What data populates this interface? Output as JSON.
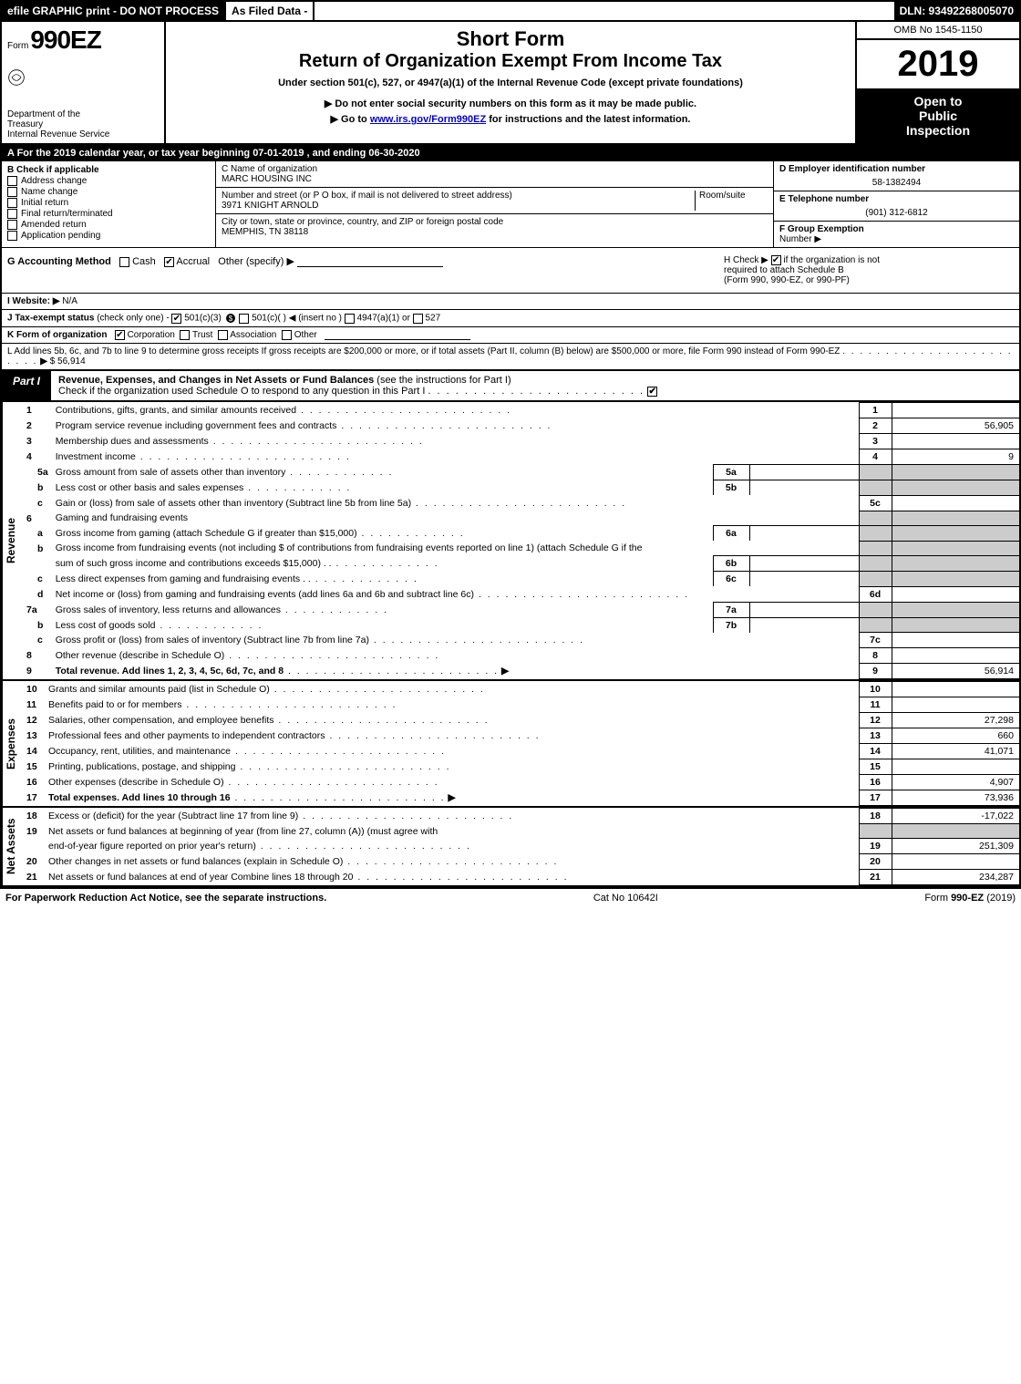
{
  "colors": {
    "black": "#000000",
    "white": "#ffffff",
    "shaded": "#cccccc",
    "link": "#0000cc"
  },
  "topbar": {
    "efile": "efile GRAPHIC print - DO NOT PROCESS",
    "asfiled": "As Filed Data -",
    "dln": "DLN: 93492268005070"
  },
  "header": {
    "form_prefix": "Form",
    "form_number": "990EZ",
    "dept1": "Department of the",
    "dept2": "Treasury",
    "dept3": "Internal Revenue Service",
    "short_form": "Short Form",
    "title": "Return of Organization Exempt From Income Tax",
    "subtitle": "Under section 501(c), 527, or 4947(a)(1) of the Internal Revenue Code (except private foundations)",
    "arrow1": "▶ Do not enter social security numbers on this form as it may be made public.",
    "arrow2_pre": "▶ Go to ",
    "arrow2_link": "www.irs.gov/Form990EZ",
    "arrow2_post": " for instructions and the latest information.",
    "omb": "OMB No 1545-1150",
    "year": "2019",
    "inspection1": "Open to",
    "inspection2": "Public",
    "inspection3": "Inspection"
  },
  "line_a": "A  For the 2019 calendar year, or tax year beginning 07-01-2019 , and ending 06-30-2020",
  "box_b": {
    "title": "B  Check if applicable",
    "items": [
      {
        "label": "Address change",
        "checked": false
      },
      {
        "label": "Name change",
        "checked": false
      },
      {
        "label": "Initial return",
        "checked": false
      },
      {
        "label": "Final return/terminated",
        "checked": false
      },
      {
        "label": "Amended return",
        "checked": false
      },
      {
        "label": "Application pending",
        "checked": false
      }
    ]
  },
  "box_c": {
    "label": "C Name of organization",
    "value": "MARC HOUSING INC",
    "street_label": "Number and street (or P O box, if mail is not delivered to street address)",
    "room_label": "Room/suite",
    "street": "3971 KNIGHT ARNOLD",
    "city_label": "City or town, state or province, country, and ZIP or foreign postal code",
    "city": "MEMPHIS, TN  38118"
  },
  "box_d": {
    "label": "D Employer identification number",
    "value": "58-1382494"
  },
  "box_e": {
    "label": "E Telephone number",
    "value": "(901) 312-6812"
  },
  "box_f": {
    "label": "F Group Exemption",
    "label2": "Number   ▶",
    "value": ""
  },
  "box_g": {
    "label": "G Accounting Method",
    "cash": "Cash",
    "accrual": "Accrual",
    "other": "Other (specify) ▶"
  },
  "box_h": {
    "text1": "H   Check ▶",
    "text2": "if the organization is not",
    "text3": "required to attach Schedule B",
    "text4": "(Form 990, 990-EZ, or 990-PF)",
    "checked": true
  },
  "box_i": {
    "label": "I Website: ▶",
    "value": "N/A"
  },
  "box_j": {
    "label": "J Tax-exempt status",
    "note": "(check only one) -",
    "opt1": "501(c)(3)",
    "opt2": "501(c)(  )",
    "opt2_note": "◀ (insert no )",
    "opt3": "4947(a)(1) or",
    "opt4": "527"
  },
  "box_k": {
    "label": "K Form of organization",
    "opts": [
      "Corporation",
      "Trust",
      "Association",
      "Other"
    ],
    "checked_index": 0
  },
  "box_l": {
    "text": "L Add lines 5b, 6c, and 7b to line 9 to determine gross receipts  If gross receipts are $200,000 or more, or if total assets (Part II, column (B) below) are $500,000 or more, file Form 990 instead of Form 990-EZ",
    "arrow": "▶",
    "value": "$ 56,914"
  },
  "part1": {
    "badge": "Part I",
    "title": "Revenue, Expenses, and Changes in Net Assets or Fund Balances",
    "title_note": " (see the instructions for Part I)",
    "check_line": "Check if the organization used Schedule O to respond to any question in this Part I",
    "checked": true
  },
  "revenue_lines": [
    {
      "n": "1",
      "d": "Contributions, gifts, grants, and similar amounts received",
      "r": "1",
      "v": ""
    },
    {
      "n": "2",
      "d": "Program service revenue including government fees and contracts",
      "r": "2",
      "v": "56,905"
    },
    {
      "n": "3",
      "d": "Membership dues and assessments",
      "r": "3",
      "v": ""
    },
    {
      "n": "4",
      "d": "Investment income",
      "r": "4",
      "v": "9"
    },
    {
      "n": "5a",
      "sub": true,
      "d": "Gross amount from sale of assets other than inventory",
      "mb": "5a",
      "mv": ""
    },
    {
      "n": "b",
      "sub": true,
      "d": "Less  cost or other basis and sales expenses",
      "mb": "5b",
      "mv": ""
    },
    {
      "n": "c",
      "sub": true,
      "d": "Gain or (loss) from sale of assets other than inventory (Subtract line 5b from line 5a)",
      "r": "5c",
      "v": ""
    },
    {
      "n": "6",
      "d": "Gaming and fundraising events"
    },
    {
      "n": "a",
      "sub": true,
      "d": "Gross income from gaming (attach Schedule G if greater than $15,000)",
      "mb": "6a",
      "mv": ""
    },
    {
      "n": "b",
      "sub": true,
      "d": "Gross income from fundraising events (not including $                           of contributions from fundraising events reported on line 1) (attach Schedule G if the"
    },
    {
      "n": "",
      "sub": true,
      "d": "sum of such gross income and contributions exceeds $15,000)     .   .",
      "mb": "6b",
      "mv": ""
    },
    {
      "n": "c",
      "sub": true,
      "d": "Less  direct expenses from gaming and fundraising events        .   .",
      "mb": "6c",
      "mv": ""
    },
    {
      "n": "d",
      "sub": true,
      "d": "Net income or (loss) from gaming and fundraising events (add lines 6a and 6b and subtract line 6c)",
      "r": "6d",
      "v": ""
    },
    {
      "n": "7a",
      "d": "Gross sales of inventory, less returns and allowances",
      "mb": "7a",
      "mv": ""
    },
    {
      "n": "b",
      "sub": true,
      "d": "Less  cost of goods sold",
      "mb": "7b",
      "mv": ""
    },
    {
      "n": "c",
      "sub": true,
      "d": "Gross profit or (loss) from sales of inventory (Subtract line 7b from line 7a)",
      "r": "7c",
      "v": ""
    },
    {
      "n": "8",
      "d": "Other revenue (describe in Schedule O)",
      "r": "8",
      "v": ""
    },
    {
      "n": "9",
      "d": "Total revenue. Add lines 1, 2, 3, 4, 5c, 6d, 7c, and 8",
      "bold": true,
      "arrow": true,
      "r": "9",
      "v": "56,914"
    }
  ],
  "expense_lines": [
    {
      "n": "10",
      "d": "Grants and similar amounts paid (list in Schedule O)",
      "r": "10",
      "v": ""
    },
    {
      "n": "11",
      "d": "Benefits paid to or for members",
      "r": "11",
      "v": ""
    },
    {
      "n": "12",
      "d": "Salaries, other compensation, and employee benefits",
      "r": "12",
      "v": "27,298"
    },
    {
      "n": "13",
      "d": "Professional fees and other payments to independent contractors",
      "r": "13",
      "v": "660"
    },
    {
      "n": "14",
      "d": "Occupancy, rent, utilities, and maintenance",
      "r": "14",
      "v": "41,071"
    },
    {
      "n": "15",
      "d": "Printing, publications, postage, and shipping",
      "r": "15",
      "v": ""
    },
    {
      "n": "16",
      "d": "Other expenses (describe in Schedule O)",
      "r": "16",
      "v": "4,907"
    },
    {
      "n": "17",
      "d": "Total expenses. Add lines 10 through 16",
      "bold": true,
      "arrow": true,
      "r": "17",
      "v": "73,936"
    }
  ],
  "netasset_lines": [
    {
      "n": "18",
      "d": "Excess or (deficit) for the year (Subtract line 17 from line 9)",
      "r": "18",
      "v": "-17,022"
    },
    {
      "n": "19",
      "d": "Net assets or fund balances at beginning of year (from line 27, column (A)) (must agree with"
    },
    {
      "n": "",
      "d": "end-of-year figure reported on prior year's return)",
      "r": "19",
      "v": "251,309"
    },
    {
      "n": "20",
      "d": "Other changes in net assets or fund balances (explain in Schedule O)",
      "r": "20",
      "v": ""
    },
    {
      "n": "21",
      "d": "Net assets or fund balances at end of year  Combine lines 18 through 20",
      "r": "21",
      "v": "234,287"
    }
  ],
  "section_labels": {
    "revenue": "Revenue",
    "expenses": "Expenses",
    "netassets": "Net Assets"
  },
  "footer": {
    "left": "For Paperwork Reduction Act Notice, see the separate instructions.",
    "mid": "Cat No 10642I",
    "right_pre": "Form ",
    "right_form": "990-EZ",
    "right_post": " (2019)"
  }
}
